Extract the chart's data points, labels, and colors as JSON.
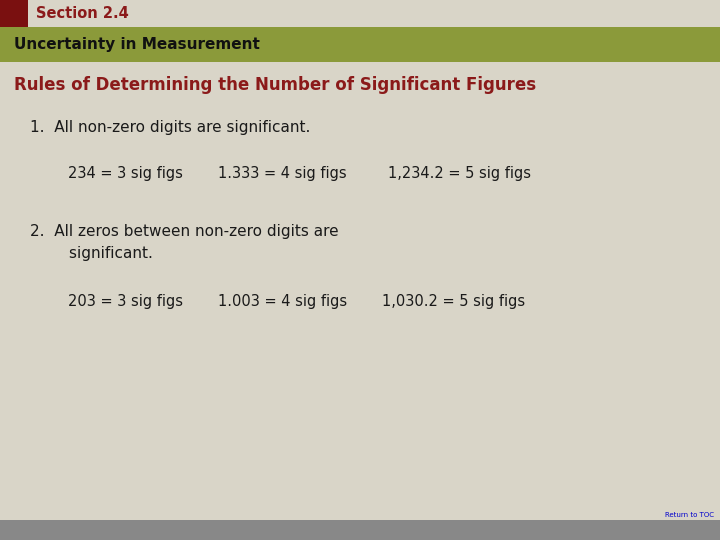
{
  "section_label": "Section 2.4",
  "subtitle": "Uncertainty in Measurement",
  "title": "Rules of Determining the Number of Significant Figures",
  "rule1": "1.  All non-zero digits are significant.",
  "rule1_ex1": "234 = 3 sig figs",
  "rule1_ex2": "1.333 = 4 sig figs",
  "rule1_ex3": "1,234.2 = 5 sig figs",
  "rule2_line1": "2.  All zeros between non-zero digits are",
  "rule2_line2": "        significant.",
  "rule2_ex1": "203 = 3 sig figs",
  "rule2_ex2": "1.003 = 4 sig figs",
  "rule2_ex3": "1,030.2 = 5 sig figs",
  "return_toc": "Return to TOC",
  "bg_color": "#d9d5c8",
  "section_bar_bg": "#d0c8b0",
  "section_text_color": "#8b1a1a",
  "section_accent_color": "#7a1010",
  "green_bar_color": "#8b9a3a",
  "green_text_color": "#111111",
  "title_color": "#8b1a1a",
  "text_color": "#1a1a1a",
  "bottom_bar_color": "#888888",
  "toc_color": "#0000cc",
  "top_bar_height": 27,
  "green_bar_height": 35,
  "bottom_bar_height": 20
}
